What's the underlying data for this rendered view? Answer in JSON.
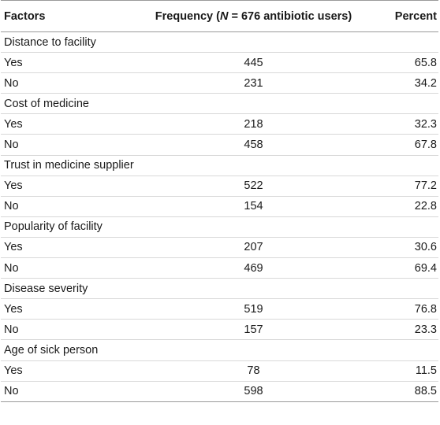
{
  "table": {
    "headers": {
      "factors": "Factors",
      "frequency_prefix": "Frequency (",
      "frequency_n": "N",
      "frequency_suffix": " = 676 antibiotic users)",
      "percent": "Percent"
    },
    "groups": [
      {
        "label": "Distance to facility",
        "rows": [
          {
            "label": "Yes",
            "frequency": "445",
            "percent": "65.8"
          },
          {
            "label": "No",
            "frequency": "231",
            "percent": "34.2"
          }
        ]
      },
      {
        "label": "Cost of medicine",
        "rows": [
          {
            "label": "Yes",
            "frequency": "218",
            "percent": "32.3"
          },
          {
            "label": "No",
            "frequency": "458",
            "percent": "67.8"
          }
        ]
      },
      {
        "label": "Trust in medicine supplier",
        "rows": [
          {
            "label": "Yes",
            "frequency": "522",
            "percent": "77.2"
          },
          {
            "label": "No",
            "frequency": "154",
            "percent": "22.8"
          }
        ]
      },
      {
        "label": "Popularity of facility",
        "rows": [
          {
            "label": "Yes",
            "frequency": "207",
            "percent": "30.6"
          },
          {
            "label": "No",
            "frequency": "469",
            "percent": "69.4"
          }
        ]
      },
      {
        "label": "Disease severity",
        "rows": [
          {
            "label": "Yes",
            "frequency": "519",
            "percent": "76.8"
          },
          {
            "label": "No",
            "frequency": "157",
            "percent": "23.3"
          }
        ]
      },
      {
        "label": "Age of sick person",
        "rows": [
          {
            "label": "Yes",
            "frequency": "78",
            "percent": "11.5"
          },
          {
            "label": "No",
            "frequency": "598",
            "percent": "88.5"
          }
        ]
      }
    ]
  }
}
